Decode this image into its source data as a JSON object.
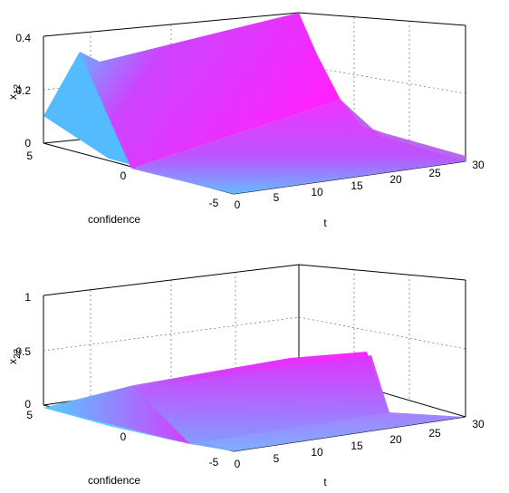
{
  "colors": {
    "surface_low": "#55ccff",
    "surface_high": "#ff22ff"
  },
  "chart_data": [
    {
      "type": "surface",
      "zlabel": "x12",
      "xlabel": "t",
      "ylabel": "confidence",
      "xlim": [
        0,
        30
      ],
      "ylim": [
        -5,
        5
      ],
      "zlim": [
        0,
        0.4
      ],
      "x_ticks": [
        "0",
        "5",
        "10",
        "15",
        "20",
        "25",
        "30"
      ],
      "y_ticks": [
        "-5",
        "0",
        "5"
      ],
      "z_ticks": [
        "0",
        "0.2",
        "0.4"
      ],
      "grid": true,
      "ridge_z_at_t": [
        {
          "t": 0,
          "z": 0.1
        },
        {
          "t": 1,
          "z": 0.35
        },
        {
          "t": 3,
          "z": 0.31
        },
        {
          "t": 10,
          "z": 0.33
        },
        {
          "t": 20,
          "z": 0.37
        },
        {
          "t": 25,
          "z": 0.39
        },
        {
          "t": 30,
          "z": 0.4
        }
      ]
    },
    {
      "type": "surface",
      "zlabel": "x22",
      "xlabel": "t",
      "ylabel": "confidence",
      "xlim": [
        0,
        30
      ],
      "ylim": [
        -5,
        5
      ],
      "zlim": [
        0,
        1
      ],
      "x_ticks": [
        "0",
        "5",
        "10",
        "15",
        "20",
        "25",
        "30"
      ],
      "y_ticks": [
        "-5",
        "0",
        "5"
      ],
      "z_ticks": [
        "0",
        "0.5",
        "1"
      ],
      "grid": true,
      "ridge_z_at_t": [
        {
          "t": 0,
          "z": 0.02
        },
        {
          "t": 3,
          "z": 0.1
        },
        {
          "t": 10,
          "z": 0.25
        },
        {
          "t": 20,
          "z": 0.4
        },
        {
          "t": 30,
          "z": 0.5
        }
      ]
    }
  ]
}
